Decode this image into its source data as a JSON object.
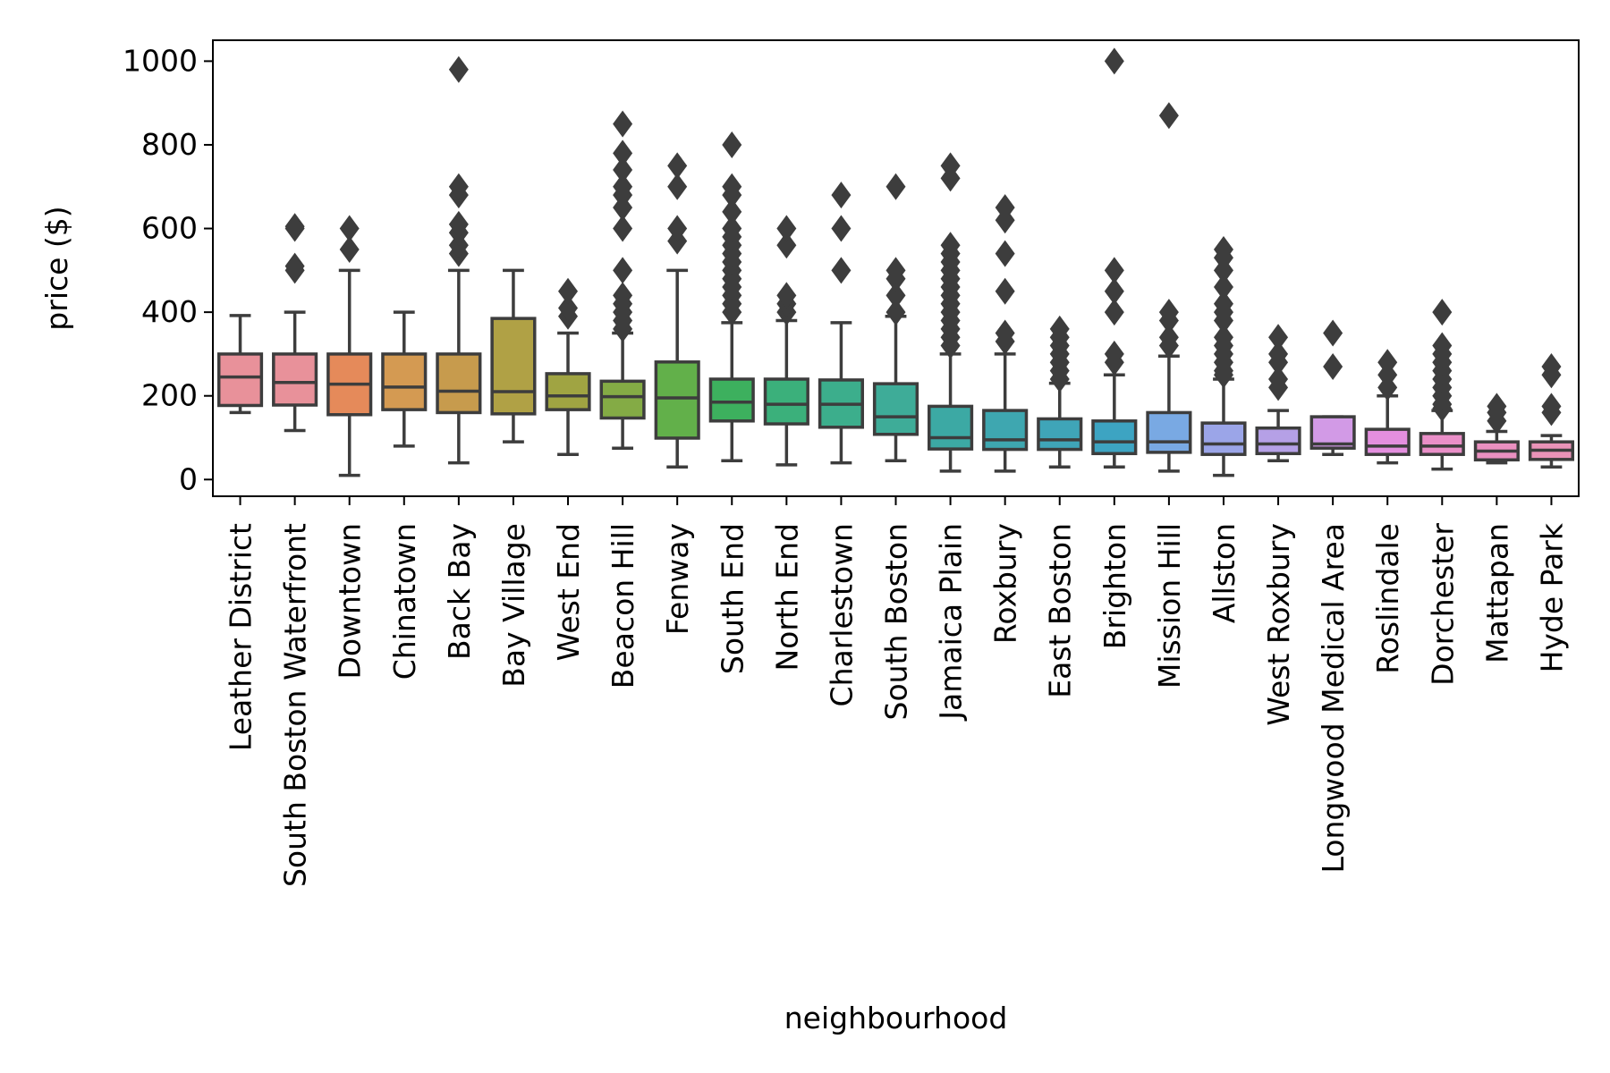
{
  "chart_data": {
    "type": "box",
    "title": "",
    "xlabel": "neighbourhood",
    "ylabel": "price ($)",
    "ylim": [
      -40,
      1050
    ],
    "yticks": [
      0,
      200,
      400,
      600,
      800,
      1000
    ],
    "grid": false,
    "legend": "none",
    "box_color_default": "#3d3d3d",
    "series": [
      {
        "category": "Leather District",
        "color": "#e8919a",
        "whisker_low": 160,
        "q1": 177,
        "median": 245,
        "q3": 300,
        "whisker_high": 392,
        "outliers": []
      },
      {
        "category": "South Boston Waterfront",
        "color": "#e8919a",
        "whisker_low": 117,
        "q1": 178,
        "median": 232,
        "q3": 300,
        "whisker_high": 400,
        "outliers": [
          500,
          510,
          600,
          605
        ]
      },
      {
        "category": "Downtown",
        "color": "#e58a5a",
        "whisker_low": 10,
        "q1": 155,
        "median": 228,
        "q3": 300,
        "whisker_high": 500,
        "outliers": [
          550,
          600
        ]
      },
      {
        "category": "Chinatown",
        "color": "#d49a52",
        "whisker_low": 80,
        "q1": 167,
        "median": 221,
        "q3": 300,
        "whisker_high": 400,
        "outliers": []
      },
      {
        "category": "Back Bay",
        "color": "#c79b4d",
        "whisker_low": 40,
        "q1": 160,
        "median": 211,
        "q3": 300,
        "whisker_high": 500,
        "outliers": [
          540,
          560,
          590,
          610,
          680,
          700,
          980
        ]
      },
      {
        "category": "Bay Village",
        "color": "#b0a145",
        "whisker_low": 90,
        "q1": 157,
        "median": 210,
        "q3": 385,
        "whisker_high": 500,
        "outliers": []
      },
      {
        "category": "West End",
        "color": "#a0a442",
        "whisker_low": 60,
        "q1": 167,
        "median": 200,
        "q3": 253,
        "whisker_high": 350,
        "outliers": [
          390,
          410,
          450
        ]
      },
      {
        "category": "Beacon Hill",
        "color": "#84ab45",
        "whisker_low": 75,
        "q1": 147,
        "median": 198,
        "q3": 235,
        "whisker_high": 350,
        "outliers": [
          360,
          380,
          400,
          420,
          440,
          500,
          600,
          650,
          680,
          700,
          740,
          780,
          850
        ]
      },
      {
        "category": "Fenway",
        "color": "#62b04a",
        "whisker_low": 30,
        "q1": 99,
        "median": 195,
        "q3": 281,
        "whisker_high": 500,
        "outliers": [
          570,
          600,
          700,
          750
        ]
      },
      {
        "category": "South End",
        "color": "#3db05e",
        "whisker_low": 45,
        "q1": 140,
        "median": 185,
        "q3": 240,
        "whisker_high": 375,
        "outliers": [
          400,
          420,
          440,
          460,
          480,
          500,
          520,
          540,
          560,
          580,
          600,
          640,
          680,
          700,
          800
        ]
      },
      {
        "category": "North End",
        "color": "#3bb07b",
        "whisker_low": 35,
        "q1": 133,
        "median": 180,
        "q3": 240,
        "whisker_high": 380,
        "outliers": [
          400,
          420,
          440,
          560,
          600
        ]
      },
      {
        "category": "Charlestown",
        "color": "#3cae8c",
        "whisker_low": 40,
        "q1": 125,
        "median": 180,
        "q3": 238,
        "whisker_high": 375,
        "outliers": [
          500,
          600,
          680
        ]
      },
      {
        "category": "South Boston",
        "color": "#3eac98",
        "whisker_low": 45,
        "q1": 108,
        "median": 150,
        "q3": 229,
        "whisker_high": 390,
        "outliers": [
          400,
          440,
          480,
          500,
          700
        ]
      },
      {
        "category": "Jamaica Plain",
        "color": "#3ca9a4",
        "whisker_low": 20,
        "q1": 73,
        "median": 100,
        "q3": 175,
        "whisker_high": 300,
        "outliers": [
          320,
          340,
          360,
          380,
          400,
          420,
          440,
          460,
          480,
          500,
          520,
          540,
          560,
          720,
          750
        ]
      },
      {
        "category": "Roxbury",
        "color": "#3ea7b0",
        "whisker_low": 20,
        "q1": 72,
        "median": 95,
        "q3": 165,
        "whisker_high": 300,
        "outliers": [
          330,
          350,
          450,
          540,
          620,
          650
        ]
      },
      {
        "category": "East Boston",
        "color": "#3fa5b8",
        "whisker_low": 30,
        "q1": 72,
        "median": 95,
        "q3": 145,
        "whisker_high": 230,
        "outliers": [
          240,
          260,
          280,
          300,
          320,
          340,
          360
        ]
      },
      {
        "category": "Brighton",
        "color": "#3da4c2",
        "whisker_low": 30,
        "q1": 62,
        "median": 90,
        "q3": 140,
        "whisker_high": 250,
        "outliers": [
          280,
          300,
          400,
          450,
          500,
          1000
        ]
      },
      {
        "category": "Mission Hill",
        "color": "#79a9e3",
        "whisker_low": 20,
        "q1": 65,
        "median": 90,
        "q3": 160,
        "whisker_high": 295,
        "outliers": [
          320,
          340,
          380,
          400,
          870
        ]
      },
      {
        "category": "Allston",
        "color": "#9ba5e8",
        "whisker_low": 10,
        "q1": 60,
        "median": 85,
        "q3": 135,
        "whisker_high": 240,
        "outliers": [
          250,
          260,
          280,
          300,
          320,
          340,
          380,
          400,
          420,
          460,
          500,
          530,
          550
        ]
      },
      {
        "category": "West Roxbury",
        "color": "#b5a0e6",
        "whisker_low": 45,
        "q1": 62,
        "median": 85,
        "q3": 123,
        "whisker_high": 165,
        "outliers": [
          220,
          240,
          280,
          300,
          340
        ]
      },
      {
        "category": "Longwood Medical Area",
        "color": "#d29ae6",
        "whisker_low": 60,
        "q1": 75,
        "median": 85,
        "q3": 150,
        "whisker_high": 150,
        "outliers": [
          270,
          350
        ]
      },
      {
        "category": "Roslindale",
        "color": "#e48fdf",
        "whisker_low": 40,
        "q1": 60,
        "median": 80,
        "q3": 120,
        "whisker_high": 200,
        "outliers": [
          220,
          250,
          280
        ]
      },
      {
        "category": "Dorchester",
        "color": "#ea8fc8",
        "whisker_low": 25,
        "q1": 60,
        "median": 80,
        "q3": 110,
        "whisker_high": 165,
        "outliers": [
          170,
          180,
          200,
          220,
          240,
          260,
          280,
          300,
          320,
          400
        ]
      },
      {
        "category": "Mattapan",
        "color": "#ea90c0",
        "whisker_low": 40,
        "q1": 47,
        "median": 68,
        "q3": 90,
        "whisker_high": 115,
        "outliers": [
          140,
          160,
          175
        ]
      },
      {
        "category": "Hyde Park",
        "color": "#ea93b8",
        "whisker_low": 30,
        "q1": 48,
        "median": 70,
        "q3": 90,
        "whisker_high": 105,
        "outliers": [
          160,
          175,
          250,
          270
        ]
      }
    ]
  }
}
